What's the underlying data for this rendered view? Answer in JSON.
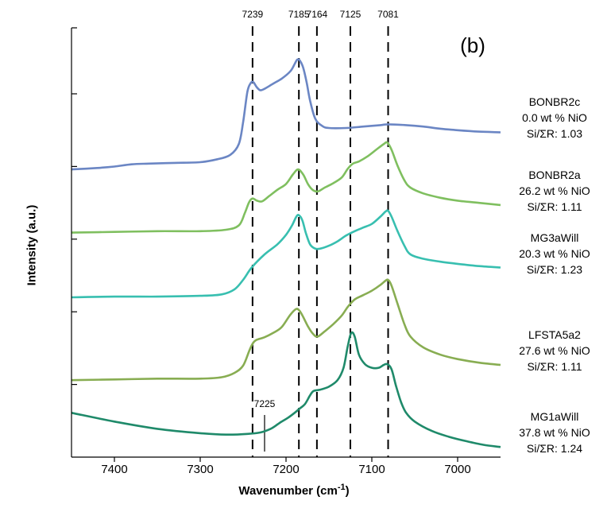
{
  "panel_label": "(b)",
  "chart_data": {
    "type": "line",
    "xlabel": "Wavenumber (cm",
    "xlabel_sup": "-1",
    "xlabel_close": ")",
    "ylabel": "Intensity (a.u.)",
    "xlim": [
      7450,
      6950
    ],
    "x_reversed": true,
    "x_ticks": [
      7400,
      7300,
      7200,
      7100,
      7000
    ],
    "x_tick_labels": [
      "7400",
      "7300",
      "7200",
      "7100",
      "7000"
    ],
    "y_ticks": [
      1,
      2,
      3,
      4,
      5
    ],
    "y_tick_labels_shown": false,
    "ylim": [
      0,
      6
    ],
    "reference_lines": [
      {
        "x": 7239,
        "label": "7239"
      },
      {
        "x": 7185,
        "label": "7185"
      },
      {
        "x": 7164,
        "label": "7164"
      },
      {
        "x": 7125,
        "label": "7125"
      },
      {
        "x": 7081,
        "label": "7081"
      }
    ],
    "annotation": {
      "x": 7225,
      "label": "7225"
    },
    "series": [
      {
        "color": "#6b86c4",
        "label_lines": [
          "BONBR2c",
          "0.0 wt % NiO",
          "Si/ΣR: 1.03"
        ],
        "points": [
          [
            7450,
            3.85
          ],
          [
            7420,
            3.87
          ],
          [
            7400,
            3.89
          ],
          [
            7380,
            3.92
          ],
          [
            7360,
            3.93
          ],
          [
            7330,
            3.94
          ],
          [
            7300,
            3.95
          ],
          [
            7280,
            3.99
          ],
          [
            7265,
            4.05
          ],
          [
            7255,
            4.2
          ],
          [
            7250,
            4.5
          ],
          [
            7245,
            4.92
          ],
          [
            7241,
            5.04
          ],
          [
            7238,
            5.05
          ],
          [
            7234,
            4.98
          ],
          [
            7230,
            4.94
          ],
          [
            7225,
            4.96
          ],
          [
            7215,
            5.03
          ],
          [
            7205,
            5.1
          ],
          [
            7195,
            5.2
          ],
          [
            7190,
            5.3
          ],
          [
            7187,
            5.36
          ],
          [
            7184,
            5.35
          ],
          [
            7180,
            5.25
          ],
          [
            7176,
            5.05
          ],
          [
            7172,
            4.8
          ],
          [
            7166,
            4.55
          ],
          [
            7158,
            4.45
          ],
          [
            7150,
            4.42
          ],
          [
            7130,
            4.42
          ],
          [
            7110,
            4.44
          ],
          [
            7090,
            4.46
          ],
          [
            7081,
            4.47
          ],
          [
            7060,
            4.46
          ],
          [
            7040,
            4.44
          ],
          [
            7020,
            4.41
          ],
          [
            7000,
            4.39
          ],
          [
            6975,
            4.37
          ],
          [
            6950,
            4.36
          ]
        ]
      },
      {
        "color": "#7fbf5f",
        "label_lines": [
          "BONBR2a",
          "26.2 wt % NiO",
          "Si/ΣR: 1.11"
        ],
        "points": [
          [
            7450,
            2.98
          ],
          [
            7400,
            2.99
          ],
          [
            7350,
            3.0
          ],
          [
            7300,
            3.0
          ],
          [
            7270,
            3.02
          ],
          [
            7255,
            3.08
          ],
          [
            7248,
            3.25
          ],
          [
            7243,
            3.4
          ],
          [
            7239,
            3.45
          ],
          [
            7234,
            3.42
          ],
          [
            7228,
            3.41
          ],
          [
            7220,
            3.48
          ],
          [
            7210,
            3.57
          ],
          [
            7200,
            3.65
          ],
          [
            7192,
            3.78
          ],
          [
            7186,
            3.85
          ],
          [
            7180,
            3.78
          ],
          [
            7174,
            3.64
          ],
          [
            7168,
            3.56
          ],
          [
            7162,
            3.55
          ],
          [
            7155,
            3.6
          ],
          [
            7145,
            3.66
          ],
          [
            7135,
            3.74
          ],
          [
            7128,
            3.86
          ],
          [
            7122,
            3.93
          ],
          [
            7115,
            3.96
          ],
          [
            7105,
            4.03
          ],
          [
            7095,
            4.12
          ],
          [
            7086,
            4.2
          ],
          [
            7082,
            4.22
          ],
          [
            7077,
            4.12
          ],
          [
            7070,
            3.9
          ],
          [
            7062,
            3.7
          ],
          [
            7055,
            3.6
          ],
          [
            7040,
            3.52
          ],
          [
            7020,
            3.46
          ],
          [
            7000,
            3.42
          ],
          [
            6975,
            3.39
          ],
          [
            6950,
            3.36
          ]
        ]
      },
      {
        "color": "#38bfb0",
        "label_lines": [
          "MG3aWill",
          "20.3 wt % NiO",
          "Si/ΣR: 1.23"
        ],
        "points": [
          [
            7450,
            2.09
          ],
          [
            7400,
            2.1
          ],
          [
            7350,
            2.1
          ],
          [
            7300,
            2.11
          ],
          [
            7275,
            2.13
          ],
          [
            7260,
            2.2
          ],
          [
            7250,
            2.33
          ],
          [
            7240,
            2.5
          ],
          [
            7225,
            2.68
          ],
          [
            7210,
            2.82
          ],
          [
            7200,
            2.95
          ],
          [
            7193,
            3.08
          ],
          [
            7188,
            3.2
          ],
          [
            7185,
            3.22
          ],
          [
            7181,
            3.15
          ],
          [
            7177,
            2.98
          ],
          [
            7172,
            2.82
          ],
          [
            7166,
            2.76
          ],
          [
            7160,
            2.76
          ],
          [
            7150,
            2.8
          ],
          [
            7140,
            2.86
          ],
          [
            7130,
            2.94
          ],
          [
            7120,
            3.0
          ],
          [
            7110,
            3.05
          ],
          [
            7100,
            3.1
          ],
          [
            7090,
            3.2
          ],
          [
            7084,
            3.27
          ],
          [
            7081,
            3.28
          ],
          [
            7077,
            3.2
          ],
          [
            7070,
            3.0
          ],
          [
            7062,
            2.8
          ],
          [
            7055,
            2.68
          ],
          [
            7040,
            2.62
          ],
          [
            7020,
            2.58
          ],
          [
            7000,
            2.55
          ],
          [
            6975,
            2.52
          ],
          [
            6950,
            2.5
          ]
        ]
      },
      {
        "color": "#88ad52",
        "label_lines": [
          "LFSTA5a2",
          "27.6 wt % NiO",
          "Si/ΣR: 1.11"
        ],
        "points": [
          [
            7450,
            0.95
          ],
          [
            7400,
            0.96
          ],
          [
            7350,
            0.97
          ],
          [
            7300,
            0.97
          ],
          [
            7275,
            0.99
          ],
          [
            7260,
            1.05
          ],
          [
            7250,
            1.15
          ],
          [
            7243,
            1.35
          ],
          [
            7239,
            1.45
          ],
          [
            7235,
            1.5
          ],
          [
            7225,
            1.54
          ],
          [
            7215,
            1.6
          ],
          [
            7205,
            1.68
          ],
          [
            7195,
            1.85
          ],
          [
            7188,
            1.93
          ],
          [
            7184,
            1.9
          ],
          [
            7180,
            1.82
          ],
          [
            7174,
            1.68
          ],
          [
            7168,
            1.58
          ],
          [
            7163,
            1.55
          ],
          [
            7155,
            1.62
          ],
          [
            7145,
            1.72
          ],
          [
            7135,
            1.84
          ],
          [
            7128,
            1.96
          ],
          [
            7120,
            2.06
          ],
          [
            7110,
            2.12
          ],
          [
            7100,
            2.18
          ],
          [
            7090,
            2.26
          ],
          [
            7084,
            2.32
          ],
          [
            7081,
            2.33
          ],
          [
            7077,
            2.25
          ],
          [
            7070,
            2.0
          ],
          [
            7062,
            1.72
          ],
          [
            7055,
            1.55
          ],
          [
            7040,
            1.4
          ],
          [
            7020,
            1.3
          ],
          [
            7000,
            1.24
          ],
          [
            6975,
            1.19
          ],
          [
            6950,
            1.16
          ]
        ]
      },
      {
        "color": "#1f8a6a",
        "label_lines": [
          "MG1aWill",
          "37.8 wt % NiO",
          "Si/ΣR: 1.24"
        ],
        "points": [
          [
            7450,
            0.5
          ],
          [
            7400,
            0.38
          ],
          [
            7350,
            0.28
          ],
          [
            7300,
            0.22
          ],
          [
            7270,
            0.2
          ],
          [
            7245,
            0.21
          ],
          [
            7230,
            0.23
          ],
          [
            7218,
            0.28
          ],
          [
            7210,
            0.34
          ],
          [
            7205,
            0.38
          ],
          [
            7198,
            0.43
          ],
          [
            7190,
            0.5
          ],
          [
            7185,
            0.55
          ],
          [
            7178,
            0.62
          ],
          [
            7172,
            0.74
          ],
          [
            7168,
            0.8
          ],
          [
            7160,
            0.82
          ],
          [
            7150,
            0.86
          ],
          [
            7140,
            0.95
          ],
          [
            7133,
            1.12
          ],
          [
            7128,
            1.42
          ],
          [
            7124,
            1.6
          ],
          [
            7120,
            1.55
          ],
          [
            7115,
            1.3
          ],
          [
            7108,
            1.17
          ],
          [
            7100,
            1.12
          ],
          [
            7092,
            1.12
          ],
          [
            7086,
            1.16
          ],
          [
            7082,
            1.17
          ],
          [
            7077,
            1.1
          ],
          [
            7072,
            0.88
          ],
          [
            7066,
            0.65
          ],
          [
            7060,
            0.5
          ],
          [
            7050,
            0.38
          ],
          [
            7030,
            0.25
          ],
          [
            7010,
            0.17
          ],
          [
            6990,
            0.11
          ],
          [
            6970,
            0.06
          ],
          [
            6950,
            0.03
          ]
        ]
      }
    ]
  }
}
